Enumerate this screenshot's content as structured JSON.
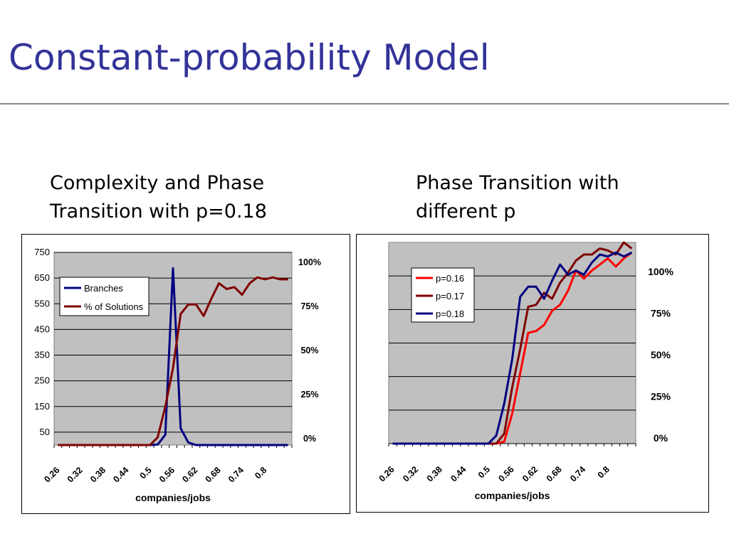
{
  "slide": {
    "title": "Constant-probability Model",
    "left_subtitle": [
      "Complexity and Phase",
      "Transition with p=0.18"
    ],
    "right_subtitle": [
      "Phase Transition with",
      "different p"
    ]
  },
  "colors": {
    "title": "#333399",
    "plot_area": "#c0c0c0",
    "gridline": "#000000",
    "branches": "#000080",
    "solutions": "#800000",
    "p016": "#ff0000",
    "p017": "#800000",
    "p018": "#000080"
  },
  "chart_data": [
    {
      "type": "line",
      "xlabel": "companies/jobs",
      "x": [
        0.26,
        0.28,
        0.3,
        0.32,
        0.34,
        0.36,
        0.38,
        0.4,
        0.42,
        0.44,
        0.46,
        0.48,
        0.5,
        0.52,
        0.54,
        0.56,
        0.58,
        0.6,
        0.62,
        0.64,
        0.66,
        0.68,
        0.7,
        0.72,
        0.74,
        0.76,
        0.78,
        0.8,
        0.82,
        0.84,
        0.86
      ],
      "x_tick_labels": [
        "0.26",
        "0.32",
        "0.38",
        "0.44",
        "0.5",
        "0.56",
        "0.62",
        "0.68",
        "0.74",
        "0.8"
      ],
      "y_left": {
        "range": [
          0,
          750
        ],
        "tick_labels": [
          "750",
          "650",
          "550",
          "450",
          "350",
          "250",
          "150",
          "50"
        ]
      },
      "y_right": {
        "range": [
          0,
          100
        ],
        "tick_labels": [
          "100%",
          "75%",
          "50%",
          "25%",
          "0%"
        ]
      },
      "grid": true,
      "legend": "upper-left",
      "series": [
        {
          "name": "Branches",
          "axis": "left",
          "values": [
            0,
            0,
            0,
            0,
            0,
            0,
            0,
            0,
            0,
            0,
            0,
            0,
            0,
            2,
            40,
            688,
            65,
            10,
            0,
            0,
            0,
            0,
            0,
            0,
            0,
            0,
            0,
            0,
            0,
            0,
            0
          ]
        },
        {
          "name": "% of Solutions",
          "axis": "right",
          "values": [
            0,
            0,
            0,
            0,
            0,
            0,
            0,
            0,
            0,
            0,
            0,
            0,
            0,
            4,
            20,
            40,
            68,
            73,
            73,
            67,
            76,
            84,
            81,
            82,
            78,
            84,
            87,
            86,
            87,
            86,
            86
          ]
        }
      ]
    },
    {
      "type": "line",
      "xlabel": "companies/jobs",
      "x": [
        0.26,
        0.28,
        0.3,
        0.32,
        0.34,
        0.36,
        0.38,
        0.4,
        0.42,
        0.44,
        0.46,
        0.48,
        0.5,
        0.52,
        0.54,
        0.56,
        0.58,
        0.6,
        0.62,
        0.64,
        0.66,
        0.68,
        0.7,
        0.72,
        0.74,
        0.76,
        0.78,
        0.8,
        0.82,
        0.84,
        0.86
      ],
      "x_tick_labels": [
        "0.26",
        "0.32",
        "0.38",
        "0.44",
        "0.5",
        "0.56",
        "0.62",
        "0.68",
        "0.74",
        "0.8"
      ],
      "y_right": {
        "range": [
          0,
          100
        ],
        "tick_labels": [
          "100%",
          "75%",
          "50%",
          "25%",
          "0%"
        ]
      },
      "grid": true,
      "legend": "upper-left",
      "series": [
        {
          "name": "p=0.16",
          "values": [
            0,
            0,
            0,
            0,
            0,
            0,
            0,
            0,
            0,
            0,
            0,
            0,
            0,
            0,
            1,
            15,
            35,
            55,
            56,
            59,
            66,
            69,
            76,
            86,
            82,
            86,
            89,
            92,
            88,
            92,
            95
          ]
        },
        {
          "name": "p=0.17",
          "values": [
            0,
            0,
            0,
            0,
            0,
            0,
            0,
            0,
            0,
            0,
            0,
            0,
            0,
            0,
            5,
            28,
            47,
            68,
            69,
            75,
            72,
            80,
            85,
            91,
            94,
            94,
            97,
            96,
            94,
            100,
            97
          ]
        },
        {
          "name": "p=0.18",
          "values": [
            0,
            0,
            0,
            0,
            0,
            0,
            0,
            0,
            0,
            0,
            0,
            0,
            0,
            4,
            20,
            42,
            73,
            78,
            78,
            72,
            81,
            89,
            84,
            86,
            84,
            90,
            94,
            93,
            95,
            93,
            95
          ]
        }
      ]
    }
  ]
}
